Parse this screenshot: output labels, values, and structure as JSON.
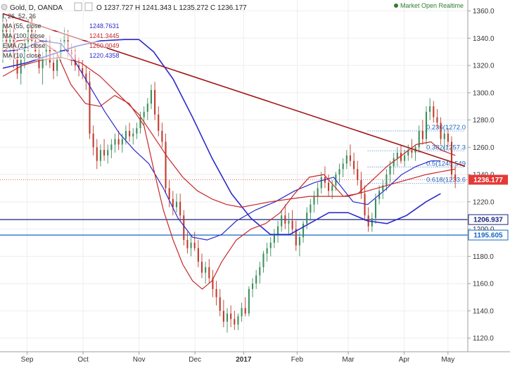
{
  "header": {
    "symbol": "Gold, D, OANDA",
    "ohlc": "O 1237.727  H 1241.343  L 1235.272  C 1236.177",
    "partial_study": "l, 26, 52, 26"
  },
  "status": {
    "label": "Market Open  Realtime",
    "dot_color": "#2e7d32"
  },
  "legend": [
    {
      "label": "MA (55, close",
      "value": "1248.7631",
      "color": "#2a2acb"
    },
    {
      "label": "MA (100, close",
      "value": "1241.3445",
      "color": "#c62828"
    },
    {
      "label": "EMA (21, close",
      "value": "1260.0049",
      "color": "#c62828"
    },
    {
      "label": "MA (10, close",
      "value": "1220.4358",
      "color": "#2a2acb"
    }
  ],
  "chart_data": {
    "type": "candlestick",
    "title": "Gold, D, OANDA",
    "y_ticks": [
      1120,
      1140,
      1160,
      1180,
      1200,
      1220,
      1240,
      1260,
      1280,
      1300,
      1320,
      1340,
      1360
    ],
    "ylim": [
      1110,
      1368
    ],
    "x_ticks": [
      "Sep",
      "Oct",
      "Nov",
      "Dec",
      "2017",
      "Feb",
      "Mar",
      "Apr",
      "May"
    ],
    "x_tick_positions": [
      10,
      33,
      56,
      79,
      99,
      121,
      142,
      165,
      183
    ],
    "xlim": [
      0,
      190
    ],
    "up_color": "#26a69a",
    "down_color": "#ef5350",
    "candle_colors": {
      "up": "#3a8f5c",
      "down": "#c0392b"
    },
    "candles": [
      [
        1340,
        1358,
        1322,
        1350
      ],
      [
        1350,
        1354,
        1330,
        1336
      ],
      [
        1336,
        1348,
        1324,
        1342
      ],
      [
        1342,
        1352,
        1318,
        1326
      ],
      [
        1326,
        1334,
        1310,
        1314
      ],
      [
        1314,
        1328,
        1306,
        1324
      ],
      [
        1324,
        1340,
        1318,
        1336
      ],
      [
        1336,
        1354,
        1330,
        1348
      ],
      [
        1348,
        1356,
        1334,
        1338
      ],
      [
        1338,
        1346,
        1326,
        1330
      ],
      [
        1330,
        1336,
        1314,
        1318
      ],
      [
        1318,
        1330,
        1306,
        1326
      ],
      [
        1326,
        1340,
        1320,
        1334
      ],
      [
        1334,
        1342,
        1318,
        1322
      ],
      [
        1322,
        1328,
        1310,
        1316
      ],
      [
        1316,
        1330,
        1312,
        1326
      ],
      [
        1326,
        1340,
        1322,
        1336
      ],
      [
        1336,
        1348,
        1330,
        1342
      ],
      [
        1342,
        1346,
        1326,
        1330
      ],
      [
        1330,
        1336,
        1320,
        1328
      ],
      [
        1328,
        1334,
        1316,
        1320
      ],
      [
        1320,
        1326,
        1312,
        1318
      ],
      [
        1318,
        1324,
        1310,
        1314
      ],
      [
        1314,
        1320,
        1302,
        1308
      ],
      [
        1308,
        1316,
        1266,
        1270
      ],
      [
        1270,
        1276,
        1254,
        1260
      ],
      [
        1260,
        1266,
        1244,
        1250
      ],
      [
        1250,
        1262,
        1246,
        1258
      ],
      [
        1258,
        1266,
        1250,
        1254
      ],
      [
        1254,
        1262,
        1248,
        1258
      ],
      [
        1258,
        1266,
        1252,
        1262
      ],
      [
        1262,
        1270,
        1256,
        1266
      ],
      [
        1266,
        1272,
        1258,
        1262
      ],
      [
        1262,
        1270,
        1256,
        1266
      ],
      [
        1266,
        1276,
        1262,
        1272
      ],
      [
        1272,
        1278,
        1264,
        1268
      ],
      [
        1268,
        1274,
        1262,
        1270
      ],
      [
        1270,
        1278,
        1266,
        1274
      ],
      [
        1274,
        1286,
        1270,
        1282
      ],
      [
        1282,
        1290,
        1276,
        1286
      ],
      [
        1286,
        1296,
        1280,
        1292
      ],
      [
        1292,
        1306,
        1288,
        1302
      ],
      [
        1302,
        1308,
        1280,
        1284
      ],
      [
        1284,
        1290,
        1268,
        1272
      ],
      [
        1272,
        1278,
        1260,
        1264
      ],
      [
        1264,
        1270,
        1226,
        1230
      ],
      [
        1230,
        1236,
        1216,
        1222
      ],
      [
        1222,
        1228,
        1210,
        1216
      ],
      [
        1216,
        1226,
        1212,
        1220
      ],
      [
        1220,
        1226,
        1206,
        1210
      ],
      [
        1210,
        1214,
        1188,
        1192
      ],
      [
        1192,
        1198,
        1182,
        1186
      ],
      [
        1186,
        1196,
        1180,
        1190
      ],
      [
        1190,
        1198,
        1184,
        1186
      ],
      [
        1186,
        1192,
        1172,
        1176
      ],
      [
        1176,
        1182,
        1164,
        1168
      ],
      [
        1168,
        1176,
        1160,
        1172
      ],
      [
        1172,
        1178,
        1160,
        1164
      ],
      [
        1164,
        1170,
        1150,
        1156
      ],
      [
        1156,
        1162,
        1144,
        1150
      ],
      [
        1150,
        1156,
        1136,
        1140
      ],
      [
        1140,
        1148,
        1128,
        1132
      ],
      [
        1132,
        1142,
        1124,
        1138
      ],
      [
        1138,
        1144,
        1128,
        1134
      ],
      [
        1134,
        1140,
        1126,
        1130
      ],
      [
        1130,
        1138,
        1126,
        1136
      ],
      [
        1136,
        1146,
        1132,
        1142
      ],
      [
        1142,
        1150,
        1136,
        1138
      ],
      [
        1138,
        1158,
        1136,
        1156
      ],
      [
        1156,
        1164,
        1150,
        1160
      ],
      [
        1160,
        1170,
        1156,
        1166
      ],
      [
        1166,
        1176,
        1160,
        1172
      ],
      [
        1172,
        1184,
        1168,
        1182
      ],
      [
        1182,
        1190,
        1176,
        1186
      ],
      [
        1186,
        1194,
        1180,
        1190
      ],
      [
        1190,
        1200,
        1186,
        1196
      ],
      [
        1196,
        1206,
        1190,
        1202
      ],
      [
        1202,
        1214,
        1198,
        1210
      ],
      [
        1210,
        1218,
        1200,
        1204
      ],
      [
        1204,
        1212,
        1196,
        1206
      ],
      [
        1206,
        1214,
        1196,
        1200
      ],
      [
        1200,
        1206,
        1184,
        1188
      ],
      [
        1188,
        1198,
        1180,
        1194
      ],
      [
        1194,
        1206,
        1190,
        1204
      ],
      [
        1204,
        1216,
        1200,
        1212
      ],
      [
        1212,
        1222,
        1206,
        1218
      ],
      [
        1218,
        1228,
        1212,
        1224
      ],
      [
        1224,
        1234,
        1218,
        1230
      ],
      [
        1230,
        1242,
        1226,
        1238
      ],
      [
        1238,
        1246,
        1230,
        1234
      ],
      [
        1234,
        1240,
        1224,
        1228
      ],
      [
        1228,
        1236,
        1222,
        1232
      ],
      [
        1232,
        1242,
        1228,
        1240
      ],
      [
        1240,
        1248,
        1234,
        1244
      ],
      [
        1244,
        1252,
        1238,
        1248
      ],
      [
        1248,
        1258,
        1244,
        1254
      ],
      [
        1254,
        1262,
        1246,
        1250
      ],
      [
        1250,
        1256,
        1240,
        1244
      ],
      [
        1244,
        1250,
        1232,
        1236
      ],
      [
        1236,
        1242,
        1222,
        1226
      ],
      [
        1226,
        1232,
        1206,
        1210
      ],
      [
        1210,
        1216,
        1198,
        1202
      ],
      [
        1202,
        1212,
        1198,
        1208
      ],
      [
        1208,
        1226,
        1204,
        1222
      ],
      [
        1222,
        1232,
        1218,
        1228
      ],
      [
        1228,
        1236,
        1222,
        1232
      ],
      [
        1232,
        1244,
        1228,
        1240
      ],
      [
        1240,
        1250,
        1234,
        1246
      ],
      [
        1246,
        1256,
        1240,
        1252
      ],
      [
        1252,
        1260,
        1246,
        1256
      ],
      [
        1256,
        1262,
        1248,
        1250
      ],
      [
        1250,
        1258,
        1246,
        1254
      ],
      [
        1254,
        1262,
        1250,
        1258
      ],
      [
        1258,
        1266,
        1252,
        1256
      ],
      [
        1256,
        1262,
        1250,
        1260
      ],
      [
        1260,
        1276,
        1256,
        1272
      ],
      [
        1272,
        1280,
        1262,
        1266
      ],
      [
        1266,
        1290,
        1262,
        1286
      ],
      [
        1286,
        1296,
        1280,
        1290
      ],
      [
        1290,
        1294,
        1278,
        1282
      ],
      [
        1282,
        1288,
        1274,
        1278
      ],
      [
        1278,
        1282,
        1262,
        1266
      ],
      [
        1266,
        1272,
        1258,
        1270
      ],
      [
        1270,
        1274,
        1260,
        1264
      ],
      [
        1264,
        1268,
        1236,
        1240
      ],
      [
        1240,
        1246,
        1230,
        1236
      ]
    ],
    "series": [
      {
        "name": "MA (10, close",
        "color": "#2a2acb",
        "width": 1.6,
        "points": [
          [
            0,
            1318
          ],
          [
            10,
            1322
          ],
          [
            20,
            1328
          ],
          [
            30,
            1334
          ],
          [
            40,
            1338
          ],
          [
            50,
            1339
          ],
          [
            56,
            1339
          ],
          [
            62,
            1330
          ],
          [
            70,
            1310
          ],
          [
            78,
            1282
          ],
          [
            86,
            1252
          ],
          [
            94,
            1226
          ],
          [
            102,
            1208
          ],
          [
            110,
            1196
          ],
          [
            118,
            1196
          ],
          [
            126,
            1204
          ],
          [
            134,
            1212
          ],
          [
            142,
            1212
          ],
          [
            150,
            1206
          ],
          [
            158,
            1204
          ],
          [
            166,
            1210
          ],
          [
            174,
            1220
          ],
          [
            180,
            1226
          ]
        ]
      },
      {
        "name": "MA (55, close",
        "color": "#2a2acb",
        "width": 1.2,
        "points": [
          [
            0,
            1330
          ],
          [
            8,
            1332
          ],
          [
            16,
            1338
          ],
          [
            24,
            1336
          ],
          [
            30,
            1322
          ],
          [
            36,
            1304
          ],
          [
            42,
            1286
          ],
          [
            48,
            1270
          ],
          [
            54,
            1258
          ],
          [
            60,
            1248
          ],
          [
            66,
            1230
          ],
          [
            72,
            1208
          ],
          [
            78,
            1194
          ],
          [
            84,
            1192
          ],
          [
            90,
            1196
          ],
          [
            96,
            1206
          ],
          [
            104,
            1214
          ],
          [
            112,
            1220
          ],
          [
            120,
            1228
          ],
          [
            128,
            1234
          ],
          [
            136,
            1238
          ],
          [
            144,
            1220
          ],
          [
            150,
            1218
          ],
          [
            158,
            1230
          ],
          [
            164,
            1240
          ],
          [
            170,
            1246
          ],
          [
            176,
            1250
          ],
          [
            180,
            1250
          ]
        ]
      },
      {
        "name": "EMA (21, close",
        "color": "#c62828",
        "width": 1.2,
        "points": [
          [
            0,
            1330
          ],
          [
            6,
            1338
          ],
          [
            14,
            1340
          ],
          [
            22,
            1330
          ],
          [
            28,
            1306
          ],
          [
            34,
            1292
          ],
          [
            40,
            1290
          ],
          [
            46,
            1298
          ],
          [
            52,
            1292
          ],
          [
            58,
            1276
          ],
          [
            62,
            1244
          ],
          [
            66,
            1214
          ],
          [
            70,
            1192
          ],
          [
            74,
            1174
          ],
          [
            78,
            1162
          ],
          [
            82,
            1156
          ],
          [
            86,
            1162
          ],
          [
            90,
            1176
          ],
          [
            96,
            1192
          ],
          [
            102,
            1200
          ],
          [
            108,
            1204
          ],
          [
            114,
            1212
          ],
          [
            120,
            1226
          ],
          [
            126,
            1238
          ],
          [
            132,
            1240
          ],
          [
            136,
            1232
          ],
          [
            140,
            1224
          ],
          [
            146,
            1226
          ],
          [
            152,
            1236
          ],
          [
            158,
            1246
          ],
          [
            164,
            1254
          ],
          [
            170,
            1262
          ],
          [
            176,
            1264
          ],
          [
            180,
            1258
          ],
          [
            186,
            1254
          ]
        ]
      },
      {
        "name": "MA (100, close",
        "color": "#c62828",
        "width": 1.2,
        "points": [
          [
            0,
            1312
          ],
          [
            8,
            1320
          ],
          [
            16,
            1324
          ],
          [
            24,
            1326
          ],
          [
            32,
            1322
          ],
          [
            40,
            1312
          ],
          [
            48,
            1298
          ],
          [
            56,
            1284
          ],
          [
            62,
            1268
          ],
          [
            68,
            1252
          ],
          [
            74,
            1238
          ],
          [
            80,
            1228
          ],
          [
            86,
            1222
          ],
          [
            92,
            1218
          ],
          [
            98,
            1216
          ],
          [
            104,
            1218
          ],
          [
            110,
            1220
          ],
          [
            118,
            1222
          ],
          [
            126,
            1224
          ],
          [
            134,
            1224
          ],
          [
            142,
            1224
          ],
          [
            150,
            1228
          ],
          [
            158,
            1232
          ],
          [
            166,
            1236
          ],
          [
            174,
            1240
          ],
          [
            180,
            1242
          ],
          [
            186,
            1244
          ]
        ]
      }
    ],
    "trendline": {
      "color": "#a31515",
      "from": [
        0,
        1358
      ],
      "to": [
        190,
        1246
      ]
    },
    "horizontal_lines": [
      {
        "value": 1206.937,
        "label": "1206.937",
        "color": "#1a237e"
      },
      {
        "value": 1195.605,
        "label": "1195.605",
        "color": "#1565c0"
      }
    ],
    "current_price": {
      "value": 1236.177,
      "label": "1236.177",
      "color": "#e53935"
    },
    "fibonacci": [
      {
        "ratio": "0.236",
        "value": 1272.0,
        "label": "0.236(1272.0",
        "x": 150
      },
      {
        "ratio": "0.382",
        "value": 1257.3,
        "label": "0.382(1257.3",
        "x": 150
      },
      {
        "ratio": "0.5",
        "value": 1245.549,
        "label": "0.5(1245.549",
        "x": 150
      },
      {
        "ratio": "0.618",
        "value": 1233.6,
        "label": "0.618(1233.6",
        "x": 150
      }
    ],
    "fib_color": "#1565c0"
  }
}
